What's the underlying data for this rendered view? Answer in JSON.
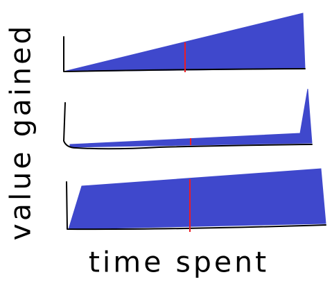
{
  "labels": {
    "y_axis": "value gained",
    "x_axis": "time spent"
  },
  "colors": {
    "fill": "#3f48cc",
    "marker": "#ed1c24",
    "ink": "#000000",
    "background": "#ffffff"
  },
  "panels": [
    {
      "id": "steady-growth"
    },
    {
      "id": "late-spike"
    },
    {
      "id": "early-jump"
    }
  ]
}
